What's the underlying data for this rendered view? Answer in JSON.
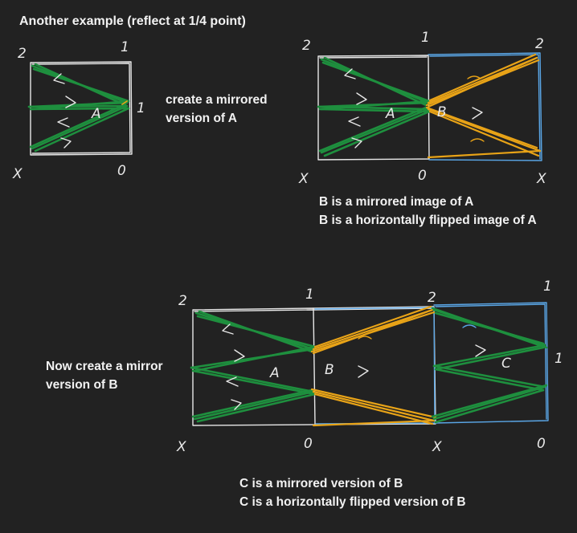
{
  "title": "Another example (reflect at 1/4 point)",
  "captions": {
    "step1": [
      "create a mirrored",
      "version of A"
    ],
    "step2": [
      "B is a mirrored image of A",
      "B is a horizontally flipped image of A"
    ],
    "step3": [
      "Now create a mirror",
      "version of B"
    ],
    "step4": [
      "C is a mirrored version of B",
      "C is a horizontally flipped version of B"
    ]
  },
  "colors": {
    "background": "#222222",
    "box_white": "#e8e8e8",
    "box_blue": "#5aa6e6",
    "path_green": "#1e8f3e",
    "path_orange": "#e8a317",
    "text": "#ffffff"
  },
  "sketch_labels": {
    "two": "2",
    "one": "1",
    "zero": "0",
    "x": "X",
    "a": "A",
    "b": "B",
    "c": "C"
  }
}
